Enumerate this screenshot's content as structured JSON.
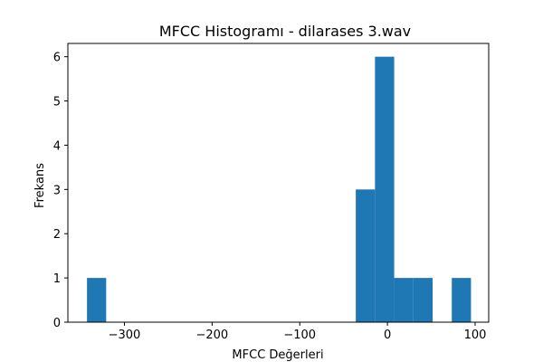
{
  "chart_data": {
    "type": "bar",
    "subtype": "histogram",
    "title": "MFCC Histogramı - dilarases 3.wav",
    "xlabel": "MFCC Değerleri",
    "ylabel": "Frekans",
    "xlim": [
      -364.5,
      115.5
    ],
    "ylim": [
      0,
      6.3
    ],
    "xticks": [
      -300,
      -200,
      -100,
      0,
      100
    ],
    "xtick_labels": [
      "−300",
      "−200",
      "−100",
      "0",
      "100"
    ],
    "yticks": [
      0,
      1,
      2,
      3,
      4,
      5,
      6
    ],
    "ytick_labels": [
      "0",
      "1",
      "2",
      "3",
      "4",
      "5",
      "6"
    ],
    "grid": false,
    "legend": "none",
    "color": "#1f77b4",
    "bin_edges": [
      -342.7,
      -320.8,
      -298.9,
      -277.0,
      -255.1,
      -233.2,
      -211.3,
      -189.4,
      -167.5,
      -145.6,
      -123.7,
      -101.8,
      -79.9,
      -58.0,
      -36.1,
      -14.2,
      7.7,
      29.6,
      51.5,
      73.4,
      95.3
    ],
    "counts": [
      1,
      0,
      0,
      0,
      0,
      0,
      0,
      0,
      0,
      0,
      0,
      0,
      0,
      0,
      3,
      6,
      1,
      1,
      0,
      1
    ]
  }
}
